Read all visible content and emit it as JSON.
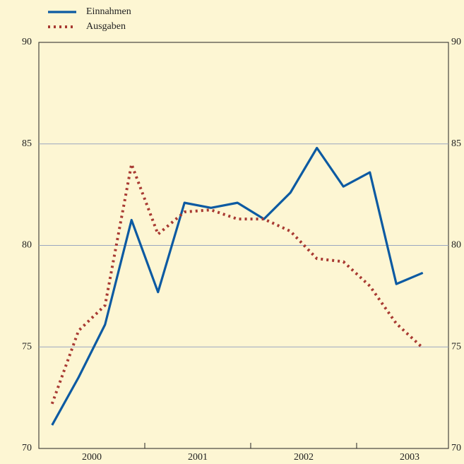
{
  "chart_data": {
    "type": "line",
    "x": [
      2000.125,
      2000.375,
      2000.625,
      2000.875,
      2001.125,
      2001.375,
      2001.625,
      2001.875,
      2002.125,
      2002.375,
      2002.625,
      2002.875,
      2003.125,
      2003.375,
      2003.625
    ],
    "series": [
      {
        "name": "Einnahmen",
        "color": "#0c5aa2",
        "style": "solid",
        "values": [
          71.15,
          73.5,
          76.1,
          81.25,
          77.7,
          82.1,
          81.85,
          82.1,
          81.3,
          82.6,
          84.8,
          82.9,
          83.6,
          78.1,
          78.65
        ]
      },
      {
        "name": "Ausgaben",
        "color": "#a83a32",
        "style": "dotted",
        "values": [
          72.2,
          75.8,
          77.05,
          84.0,
          80.55,
          81.65,
          81.75,
          81.3,
          81.3,
          80.7,
          79.35,
          79.2,
          78.0,
          76.15,
          74.95
        ]
      }
    ],
    "xlim": [
      2000,
      2003.867
    ],
    "xticks": [
      {
        "value": 2000.5,
        "label": "2000"
      },
      {
        "value": 2001.5,
        "label": "2001"
      },
      {
        "value": 2002.5,
        "label": "2002"
      },
      {
        "value": 2003.5,
        "label": "2003"
      }
    ],
    "ylim": [
      70,
      90
    ],
    "yticks": [
      70,
      75,
      80,
      85,
      90
    ],
    "y2lim": [
      70,
      90
    ],
    "y2ticks": [
      70,
      75,
      80,
      85,
      90
    ],
    "grid": true,
    "legend": "top-left"
  }
}
